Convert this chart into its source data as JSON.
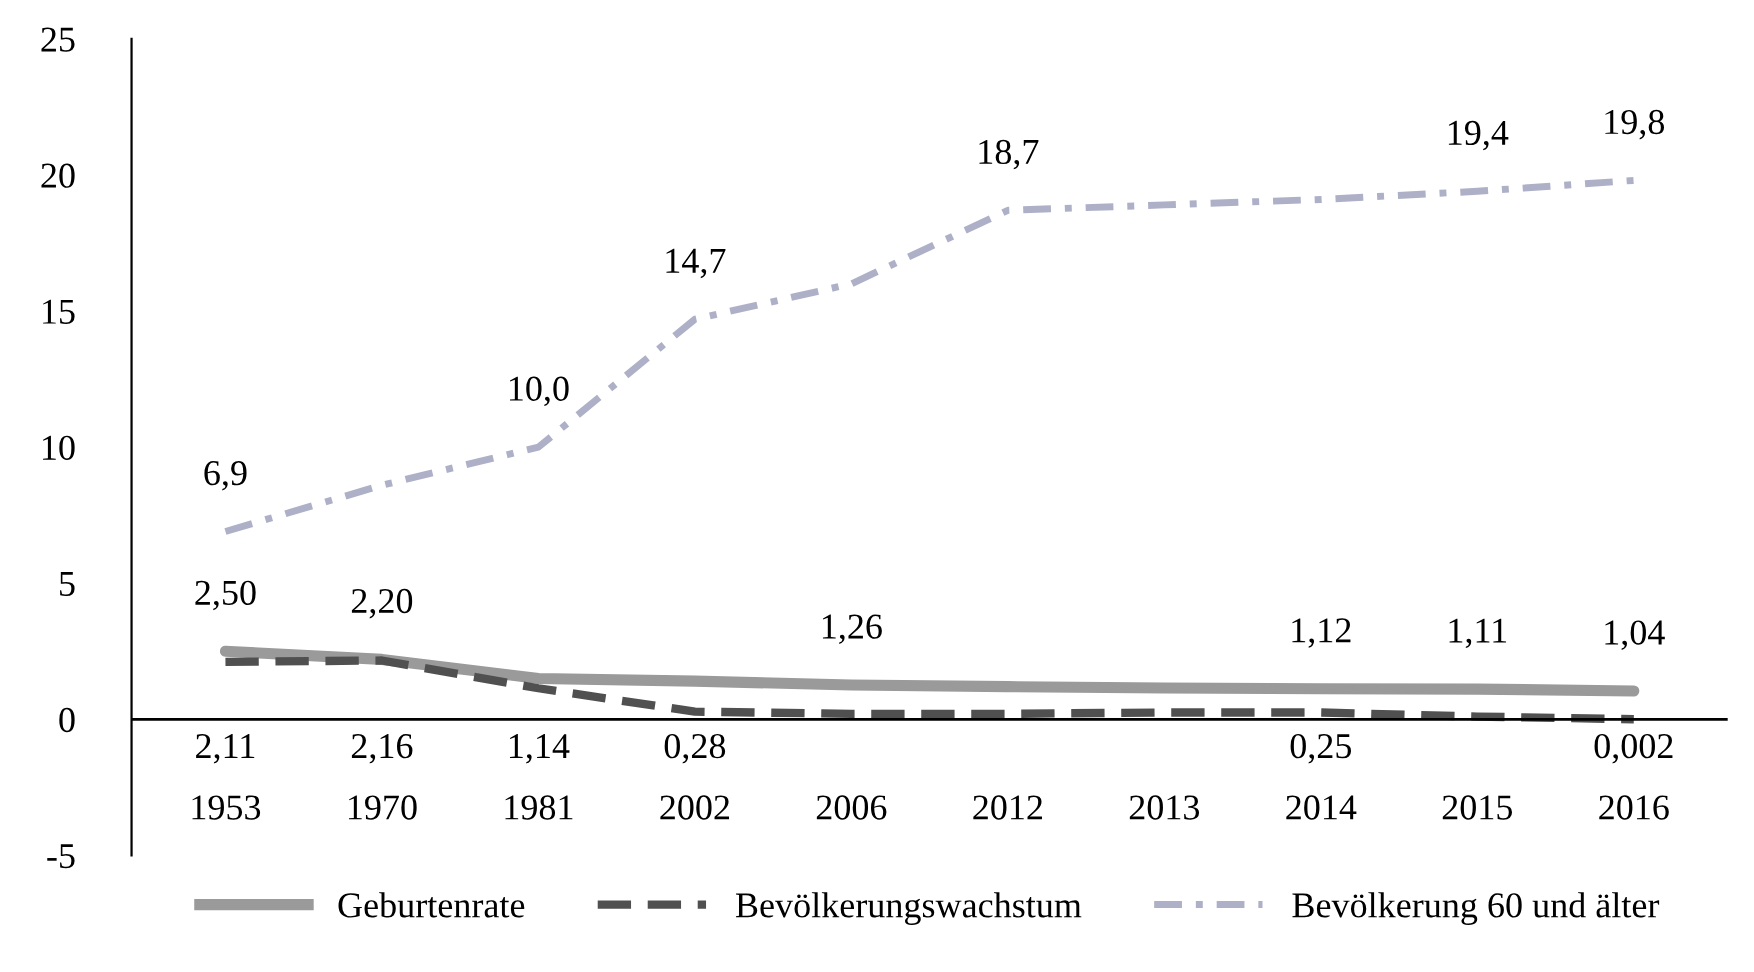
{
  "chart_data": {
    "type": "line",
    "categories": [
      "1953",
      "1970",
      "1981",
      "2002",
      "2006",
      "2012",
      "2013",
      "2014",
      "2015",
      "2016"
    ],
    "ylim": [
      -5,
      25
    ],
    "yticks": [
      -5,
      0,
      5,
      10,
      15,
      20,
      25
    ],
    "grid": false,
    "legend": "bottom",
    "series": [
      {
        "name": "Geburtenrate",
        "color": "#9a9a9a",
        "line_style": "solid",
        "values": [
          2.5,
          2.2,
          1.5,
          1.4,
          1.26,
          1.2,
          1.15,
          1.12,
          1.11,
          1.04
        ],
        "value_labels": [
          "2,50",
          "2,20",
          null,
          null,
          "1,26",
          null,
          null,
          "1,12",
          "1,11",
          "1,04"
        ]
      },
      {
        "name": "Bevölkerungswachstum",
        "color": "#505050",
        "line_style": "dashed",
        "values": [
          2.11,
          2.16,
          1.14,
          0.28,
          0.2,
          0.2,
          0.25,
          0.25,
          0.1,
          0.002
        ],
        "value_labels": [
          "2,11",
          "2,16",
          "1,14",
          "0,28",
          null,
          null,
          null,
          "0,25",
          null,
          "0,002"
        ]
      },
      {
        "name": "Bevölkerung 60 und älter",
        "color": "#aeb0c8",
        "line_style": "dotted",
        "values": [
          6.9,
          8.6,
          10.0,
          14.7,
          16.0,
          18.7,
          18.9,
          19.1,
          19.4,
          19.8
        ],
        "value_labels": [
          "6,9",
          null,
          "10,0",
          "14,7",
          null,
          "18,7",
          null,
          null,
          "19,4",
          "19,8"
        ]
      }
    ]
  }
}
